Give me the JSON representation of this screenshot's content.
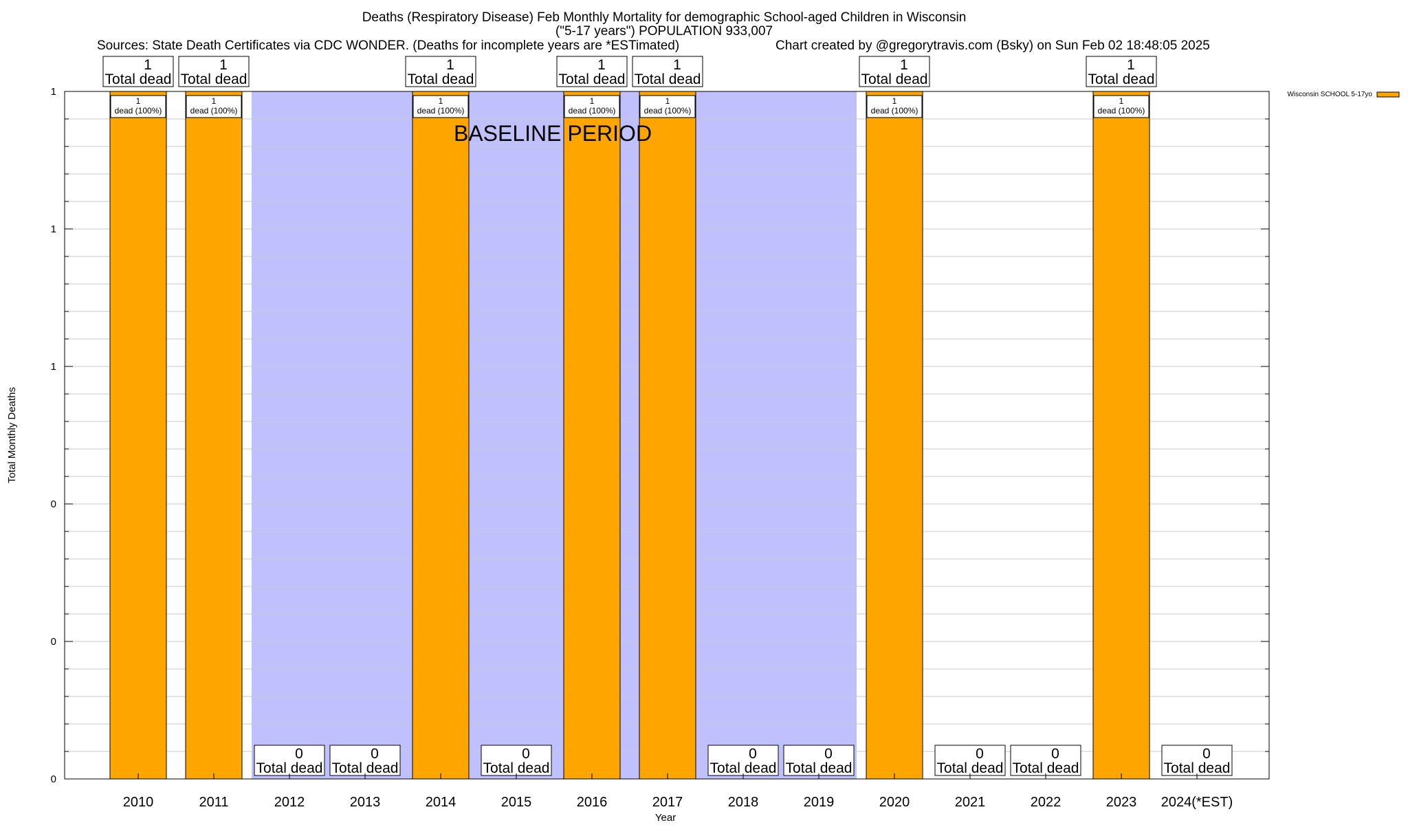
{
  "chart_data": {
    "type": "bar",
    "title_line1": "Deaths (Respiratory Disease) Feb Monthly Mortality for demographic School-aged Children in Wisconsin",
    "title_line2": "(\"5-17 years\") POPULATION 933,007",
    "sources": "Sources: State Death Certificates via CDC WONDER. (Deaths for incomplete years are *ESTimated)",
    "credit": "Chart created by @gregorytravis.com (Bsky) on Sun Feb 02 18:48:05 2025",
    "xlabel": "Year",
    "ylabel": "Total Monthly Deaths",
    "ylim": [
      0,
      1
    ],
    "yticks": [
      {
        "value": 0,
        "label": "0"
      },
      {
        "value": 0.2,
        "label": "0"
      },
      {
        "value": 0.4,
        "label": "0"
      },
      {
        "value": 0.6,
        "label": "1"
      },
      {
        "value": 0.8,
        "label": "1"
      },
      {
        "value": 1.0,
        "label": "1"
      }
    ],
    "minor_grid_step": 0.04,
    "categories": [
      "2010",
      "2011",
      "2012",
      "2013",
      "2014",
      "2015",
      "2016",
      "2017",
      "2018",
      "2019",
      "2020",
      "2021",
      "2022",
      "2023",
      "2024(*EST)"
    ],
    "series": [
      {
        "name": "Wisconsin SCHOOL 5-17yo",
        "color": "#ffa500",
        "values": [
          1,
          1,
          0,
          0,
          1,
          0,
          1,
          1,
          0,
          0,
          1,
          0,
          0,
          1,
          0
        ]
      }
    ],
    "total_labels": [
      "1",
      "1",
      "0",
      "0",
      "1",
      "0",
      "1",
      "1",
      "0",
      "0",
      "1",
      "0",
      "0",
      "1",
      "0"
    ],
    "total_suffix": "Total dead",
    "inner_labels": [
      "1",
      "1",
      "",
      "",
      "1",
      "",
      "1",
      "1",
      "",
      "",
      "1",
      "",
      "",
      "1",
      ""
    ],
    "inner_suffix": "dead (100%)",
    "baseline": {
      "label": "BASELINE PERIOD",
      "start_index": 2,
      "end_index": 9,
      "color": "#c0c0ff"
    },
    "legend_position": "top-right",
    "bar_color": "#ffa500"
  }
}
